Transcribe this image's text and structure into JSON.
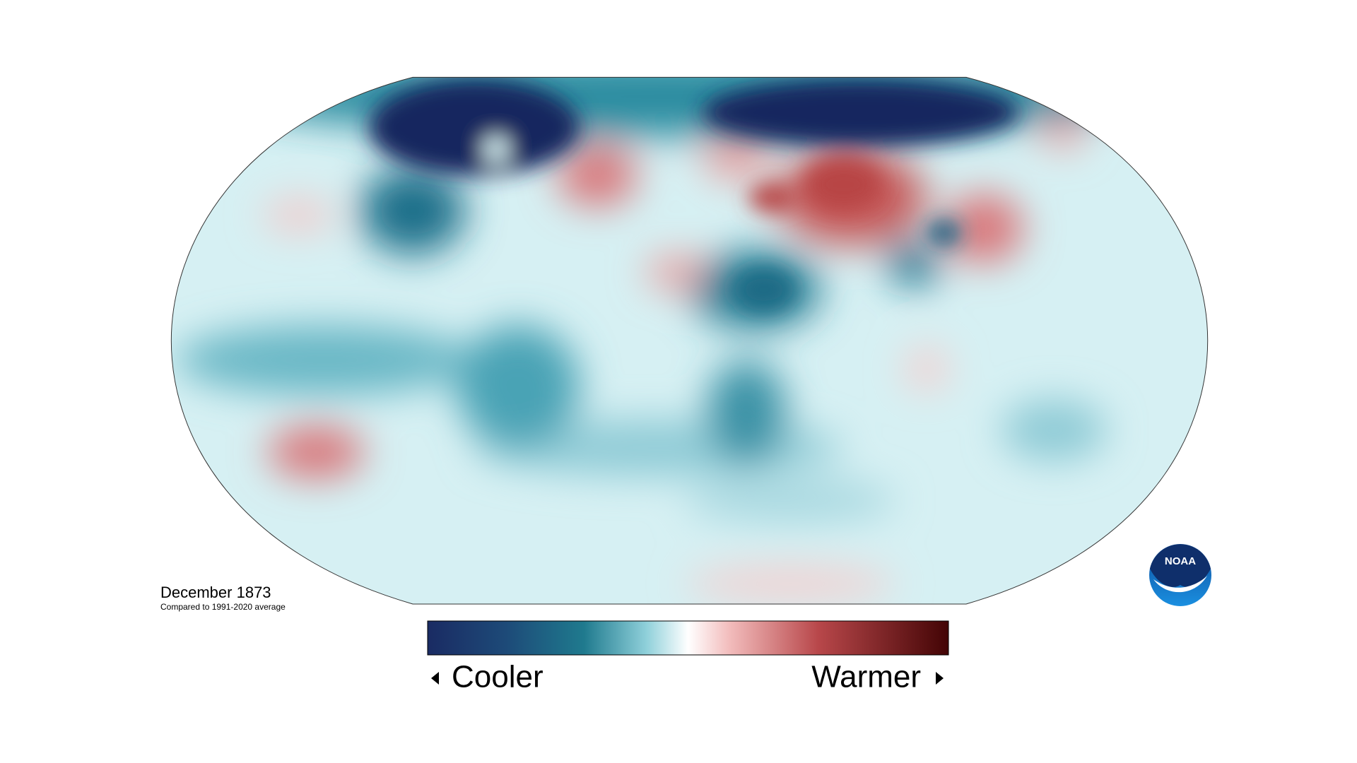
{
  "title": "December 1873",
  "subtitle": "Compared to 1991-2020 average",
  "legend": {
    "low_label": "Cooler",
    "high_label": "Warmer"
  },
  "logo": "NOAA"
}
